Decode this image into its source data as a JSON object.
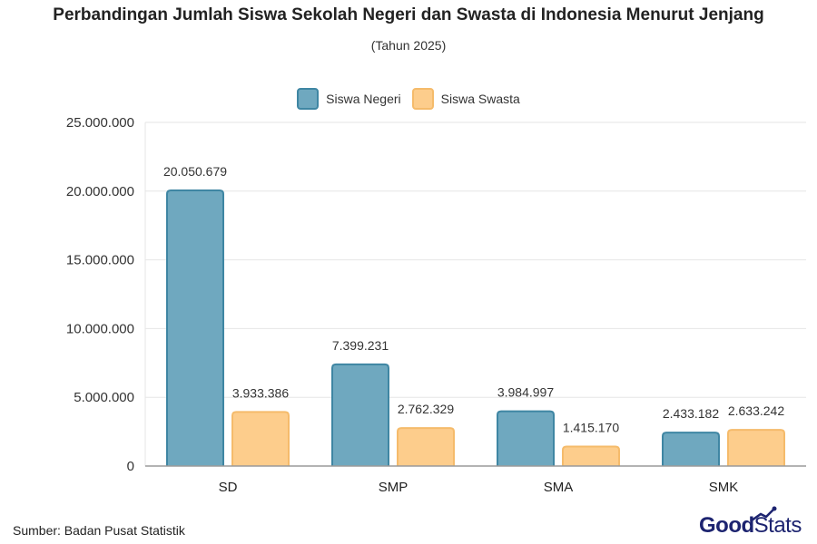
{
  "title": "Perbandingan Jumlah Siswa Sekolah Negeri dan Swasta di Indonesia Menurut Jenjang",
  "subtitle": "(Tahun 2025)",
  "legend": {
    "negeri": "Siswa Negeri",
    "swasta": "Siswa Swasta"
  },
  "colors": {
    "negeri_fill": "#6fa8bf",
    "negeri_stroke": "#3f86a3",
    "swasta_fill": "#fdcd8c",
    "swasta_stroke": "#f5bb6b",
    "grid": "#e6e6e6",
    "axis": "#9a9a9a",
    "brand": "#1d2470"
  },
  "footer": {
    "source": "Sumber: Badan Pusat Statistik",
    "logo_good": "Good",
    "logo_stats": "Stats"
  },
  "chart_data": {
    "type": "bar",
    "categories": [
      "SD",
      "SMP",
      "SMA",
      "SMK"
    ],
    "series": [
      {
        "name": "Siswa Negeri",
        "values": [
          20050679,
          7399231,
          3984997,
          2433182
        ],
        "labels": [
          "20.050.679",
          "7.399.231",
          "3.984.997",
          "2.433.182"
        ]
      },
      {
        "name": "Siswa Swasta",
        "values": [
          3933386,
          2762329,
          1415170,
          2633242
        ],
        "labels": [
          "3.933.386",
          "2.762.329",
          "1.415.170",
          "2.633.242"
        ]
      }
    ],
    "yticks": [
      0,
      5000000,
      10000000,
      15000000,
      20000000,
      25000000
    ],
    "ytick_labels": [
      "0",
      "5.000.000",
      "10.000.000",
      "15.000.000",
      "20.000.000",
      "25.000.000"
    ],
    "ylim": [
      0,
      25000000
    ],
    "grid": true,
    "legend_position": "top-center"
  }
}
